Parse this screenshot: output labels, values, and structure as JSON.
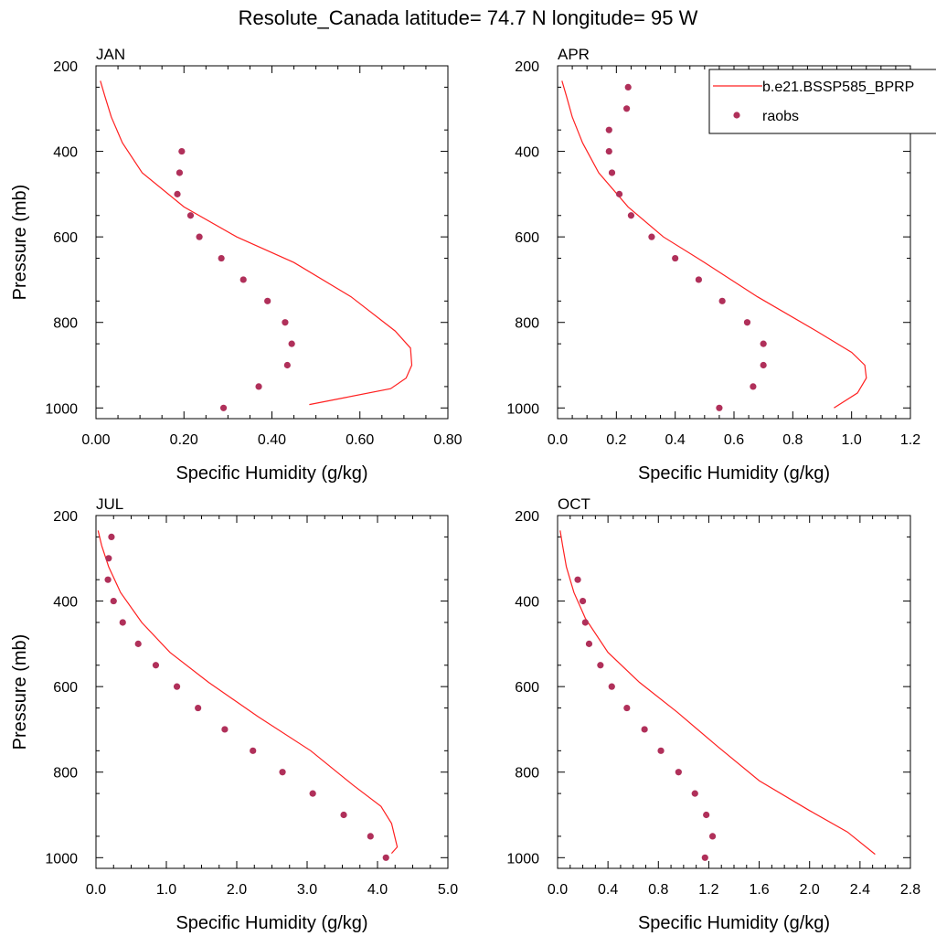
{
  "title": "Resolute_Canada  latitude= 74.7 N longitude= 95 W",
  "legend": {
    "placement": "top-right of APR panel",
    "model_label": "b.e21.BSSP585_BPRP",
    "obs_label": "raobs"
  },
  "colors": {
    "model": "#ff2020",
    "obs": "#b0305a",
    "frame": "#000000"
  },
  "chart_data": [
    {
      "type": "line",
      "panel_title": "JAN",
      "xlabel": "Specific Humidity (g/kg)",
      "ylabel": "Pressure (mb)",
      "xlim": [
        0,
        0.8
      ],
      "xticks": [
        "0.00",
        "0.20",
        "0.40",
        "0.60",
        "0.80"
      ],
      "ylim": [
        200,
        1025
      ],
      "y_reversed": true,
      "yticks": [
        "200",
        "400",
        "600",
        "800",
        "1000"
      ],
      "series": [
        {
          "name": "b.e21.BSSP585_BPRP",
          "kind": "line",
          "x": [
            0.01,
            0.02,
            0.035,
            0.06,
            0.105,
            0.2,
            0.32,
            0.45,
            0.58,
            0.68,
            0.715,
            0.718,
            0.705,
            0.67,
            0.57,
            0.485
          ],
          "y": [
            235,
            270,
            320,
            380,
            450,
            530,
            600,
            660,
            740,
            820,
            860,
            900,
            930,
            955,
            975,
            992
          ]
        },
        {
          "name": "raobs",
          "kind": "scatter",
          "x": [
            0.195,
            0.19,
            0.185,
            0.215,
            0.235,
            0.285,
            0.335,
            0.39,
            0.43,
            0.445,
            0.435,
            0.37,
            0.29
          ],
          "y": [
            400,
            450,
            500,
            550,
            600,
            650,
            700,
            750,
            800,
            850,
            900,
            950,
            1000
          ]
        }
      ]
    },
    {
      "type": "line",
      "panel_title": "APR",
      "xlabel": "Specific Humidity (g/kg)",
      "ylabel": "",
      "xlim": [
        0,
        1.2
      ],
      "xticks": [
        "0.0",
        "0.2",
        "0.4",
        "0.6",
        "0.8",
        "1.0",
        "1.2"
      ],
      "ylim": [
        200,
        1025
      ],
      "y_reversed": true,
      "yticks": [
        "200",
        "400",
        "600",
        "800",
        "1000"
      ],
      "series": [
        {
          "name": "b.e21.BSSP585_BPRP",
          "kind": "line",
          "x": [
            0.015,
            0.03,
            0.05,
            0.085,
            0.14,
            0.24,
            0.36,
            0.5,
            0.68,
            0.88,
            1.0,
            1.045,
            1.05,
            1.02,
            0.94
          ],
          "y": [
            235,
            270,
            320,
            380,
            450,
            530,
            600,
            660,
            740,
            820,
            870,
            900,
            930,
            965,
            1000
          ]
        },
        {
          "name": "raobs",
          "kind": "scatter",
          "x": [
            0.24,
            0.235,
            0.175,
            0.175,
            0.185,
            0.21,
            0.25,
            0.32,
            0.4,
            0.48,
            0.56,
            0.645,
            0.7,
            0.7,
            0.665,
            0.55
          ],
          "y": [
            250,
            300,
            350,
            400,
            450,
            500,
            550,
            600,
            650,
            700,
            750,
            800,
            850,
            900,
            950,
            1000
          ]
        }
      ]
    },
    {
      "type": "line",
      "panel_title": "JUL",
      "xlabel": "Specific Humidity (g/kg)",
      "ylabel": "Pressure (mb)",
      "xlim": [
        0,
        5.0
      ],
      "xticks": [
        "0.0",
        "1.0",
        "2.0",
        "3.0",
        "4.0",
        "5.0"
      ],
      "ylim": [
        200,
        1025
      ],
      "y_reversed": true,
      "yticks": [
        "200",
        "400",
        "600",
        "800",
        "1000"
      ],
      "series": [
        {
          "name": "b.e21.BSSP585_BPRP",
          "kind": "line",
          "x": [
            0.03,
            0.08,
            0.18,
            0.35,
            0.65,
            1.05,
            1.6,
            2.3,
            3.05,
            3.65,
            4.05,
            4.2,
            4.28,
            4.2
          ],
          "y": [
            235,
            270,
            320,
            380,
            450,
            520,
            590,
            670,
            750,
            830,
            880,
            920,
            975,
            990
          ]
        },
        {
          "name": "raobs",
          "kind": "scatter",
          "x": [
            0.22,
            0.18,
            0.17,
            0.25,
            0.38,
            0.6,
            0.85,
            1.15,
            1.45,
            1.83,
            2.23,
            2.65,
            3.08,
            3.52,
            3.9,
            4.12
          ],
          "y": [
            250,
            300,
            350,
            400,
            450,
            500,
            550,
            600,
            650,
            700,
            750,
            800,
            850,
            900,
            950,
            1000
          ]
        }
      ]
    },
    {
      "type": "line",
      "panel_title": "OCT",
      "xlabel": "Specific Humidity (g/kg)",
      "ylabel": "",
      "xlim": [
        0,
        2.8
      ],
      "xticks": [
        "0.0",
        "0.4",
        "0.8",
        "1.2",
        "1.6",
        "2.0",
        "2.4",
        "2.8"
      ],
      "ylim": [
        200,
        1025
      ],
      "y_reversed": true,
      "yticks": [
        "200",
        "400",
        "600",
        "800",
        "1000"
      ],
      "series": [
        {
          "name": "b.e21.BSSP585_BPRP",
          "kind": "line",
          "x": [
            0.02,
            0.04,
            0.07,
            0.13,
            0.22,
            0.4,
            0.65,
            0.95,
            1.27,
            1.6,
            2.0,
            2.3,
            2.52
          ],
          "y": [
            235,
            270,
            320,
            380,
            440,
            520,
            590,
            660,
            740,
            820,
            890,
            940,
            992
          ]
        },
        {
          "name": "raobs",
          "kind": "scatter",
          "x": [
            0.16,
            0.2,
            0.22,
            0.25,
            0.34,
            0.43,
            0.55,
            0.69,
            0.82,
            0.96,
            1.09,
            1.18,
            1.23,
            1.17
          ],
          "y": [
            350,
            400,
            450,
            500,
            550,
            600,
            650,
            700,
            750,
            800,
            850,
            900,
            950,
            1000
          ]
        }
      ]
    }
  ]
}
